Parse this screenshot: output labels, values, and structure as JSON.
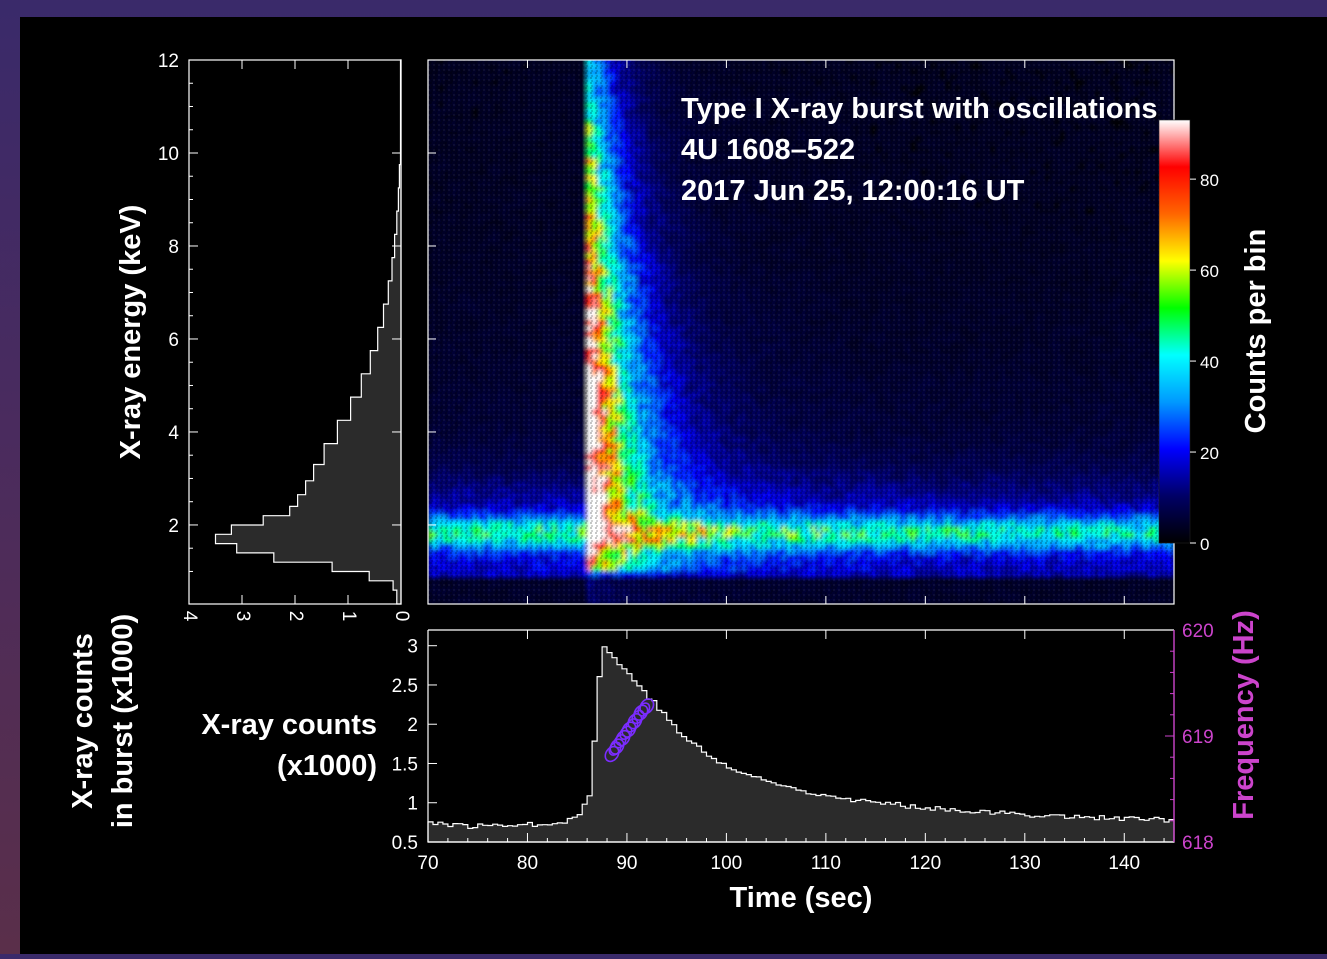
{
  "title_lines": [
    "Type I X-ray burst with oscillations",
    "4U 1608–522",
    "2017 Jun 25, 12:00:16 UT"
  ],
  "colors": {
    "background": "#000000",
    "frame": "#ffffff",
    "histogram_fill": "#2b2b2b",
    "histogram_edge": "#ffffff",
    "frequency_axis": "#cc44cc",
    "contour": "#7b2cff"
  },
  "chart_data": [
    {
      "type": "heatmap",
      "id": "dynamic-spectrum",
      "xlim": [
        70,
        145
      ],
      "ylim": [
        0.3,
        12
      ],
      "colorbar": {
        "label": "Counts per bin",
        "range": [
          0,
          93
        ],
        "ticks": [
          "0",
          "20",
          "40",
          "60",
          "80"
        ],
        "colormap": [
          "#000000",
          "#000066",
          "#0000ff",
          "#0099ff",
          "#00ffff",
          "#00ff00",
          "#ffff00",
          "#ff6600",
          "#ff0000",
          "#ffffff"
        ]
      },
      "annotations": [
        "Type I X-ray burst with oscillations",
        "4U 1608–522",
        "2017 Jun 25, 12:00:16 UT"
      ]
    },
    {
      "type": "bar",
      "id": "energy-histogram",
      "orientation": "horizontal",
      "ylabel": "X-ray energy (keV)",
      "ylim": [
        0.3,
        12
      ],
      "xlim": [
        4,
        0
      ],
      "yticks": [
        "2",
        "4",
        "6",
        "8",
        "10",
        "12"
      ],
      "xticks": [
        "4",
        "3",
        "2",
        "1",
        "0"
      ],
      "energy": [
        0.5,
        0.7,
        0.9,
        1.1,
        1.3,
        1.5,
        1.7,
        1.9,
        2.1,
        2.3,
        2.5,
        2.8,
        3.1,
        3.5,
        4.0,
        4.5,
        5.0,
        5.5,
        6.0,
        6.5,
        7.0,
        7.5,
        8.0,
        8.5,
        9.0,
        9.5,
        10.0
      ],
      "counts_x1000": [
        0.08,
        0.15,
        0.6,
        1.3,
        2.4,
        3.1,
        3.5,
        3.2,
        2.6,
        2.1,
        1.95,
        1.8,
        1.65,
        1.45,
        1.2,
        0.95,
        0.75,
        0.58,
        0.44,
        0.33,
        0.24,
        0.17,
        0.12,
        0.08,
        0.05,
        0.03,
        0.01
      ]
    },
    {
      "type": "line",
      "id": "light-curve",
      "xlabel": "Time (sec)",
      "ylabel": "X-ray counts (x1000)",
      "ylabel_outer": "X-ray counts in burst (x1000)",
      "y2label": "Frequency (Hz)",
      "xlim": [
        70,
        145
      ],
      "ylim": [
        0.5,
        3.2
      ],
      "y2lim": [
        618,
        620
      ],
      "xticks": [
        "70",
        "80",
        "90",
        "100",
        "110",
        "120",
        "130",
        "140"
      ],
      "yticks": [
        "0.5",
        "1",
        "1.5",
        "2",
        "2.5",
        "3"
      ],
      "y2ticks": [
        "618",
        "619",
        "620"
      ],
      "x": [
        70,
        72,
        74,
        76,
        78,
        80,
        82,
        84,
        85,
        86,
        86.5,
        87,
        87.5,
        88,
        88.5,
        89,
        90,
        91,
        92,
        93,
        94,
        95,
        96,
        97,
        98,
        99,
        100,
        102,
        104,
        106,
        108,
        110,
        112,
        115,
        118,
        121,
        124,
        127,
        130,
        133,
        136,
        139,
        142,
        145
      ],
      "values": [
        0.76,
        0.72,
        0.7,
        0.71,
        0.73,
        0.72,
        0.74,
        0.78,
        0.85,
        1.1,
        1.8,
        2.6,
        3.0,
        2.9,
        2.85,
        2.75,
        2.65,
        2.5,
        2.35,
        2.2,
        2.05,
        1.9,
        1.8,
        1.7,
        1.6,
        1.52,
        1.45,
        1.35,
        1.27,
        1.2,
        1.14,
        1.1,
        1.05,
        1.0,
        0.96,
        0.93,
        0.9,
        0.87,
        0.85,
        0.83,
        0.82,
        0.8,
        0.79,
        0.78
      ],
      "frequency_contours": [
        {
          "time": [
            88.5,
            89.0,
            89.6,
            90.2,
            90.8,
            91.4,
            92.0
          ],
          "frequency": [
            618.83,
            618.9,
            618.98,
            619.06,
            619.14,
            619.22,
            619.28
          ]
        },
        {
          "time": [
            88.8,
            89.3,
            89.9,
            90.5,
            91.1,
            91.7
          ],
          "frequency": [
            618.88,
            618.95,
            619.03,
            619.1,
            619.18,
            619.25
          ]
        }
      ]
    }
  ]
}
